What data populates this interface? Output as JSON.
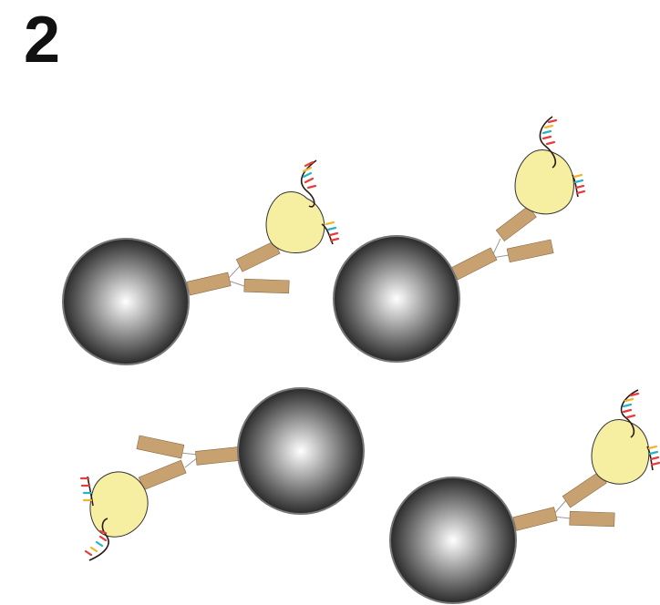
{
  "figure": {
    "step_number": "2"
  },
  "colors": {
    "bead_center": "#ffffff",
    "bead_edge": "#151515",
    "bead_outline": "#777777",
    "antibody_arm": "#c8a171",
    "antibody_arm_outline": "#8a6a45",
    "protein_fill": "#f6eea1",
    "protein_outline": "#333333",
    "dna_strand": "#2b1a14",
    "dna_base_colors": [
      "#e83b3b",
      "#f1b52b",
      "#27b3c4",
      "#e83b3b"
    ]
  },
  "complexes": [
    {
      "id": "top-left",
      "protein_bound": true
    },
    {
      "id": "top-right",
      "protein_bound": true
    },
    {
      "id": "bottom-center",
      "protein_bound": true
    },
    {
      "id": "bottom-right",
      "protein_bound": true
    }
  ]
}
